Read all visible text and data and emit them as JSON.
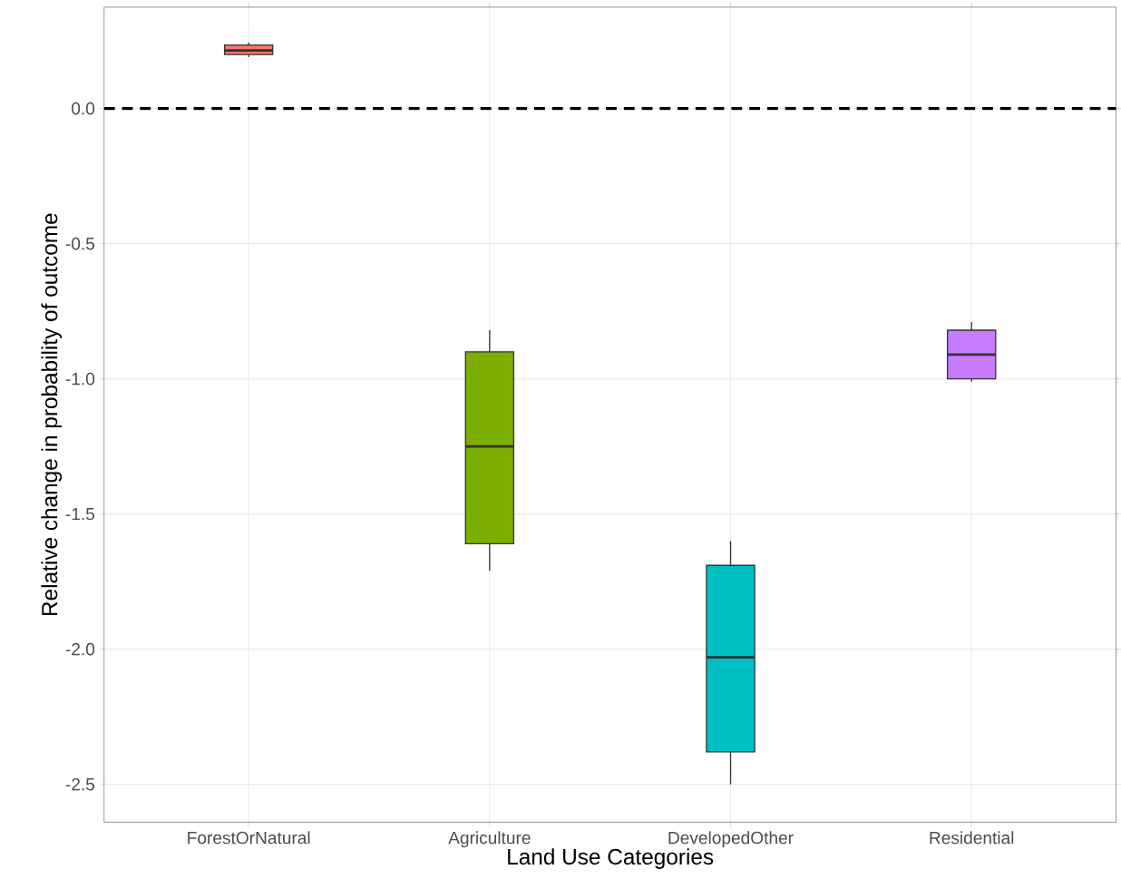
{
  "chart_data": {
    "type": "box",
    "xlabel": "Land Use Categories",
    "ylabel": "Relative change in probability of outcome",
    "categories": [
      "ForestOrNatural",
      "Agriculture",
      "DevelopedOther",
      "Residential"
    ],
    "boxes": [
      {
        "low": 0.19,
        "q1": 0.2,
        "median": 0.215,
        "q3": 0.235,
        "high": 0.245
      },
      {
        "low": -1.71,
        "q1": -1.61,
        "median": -1.25,
        "q3": -0.9,
        "high": -0.82
      },
      {
        "low": -2.5,
        "q1": -2.38,
        "median": -2.03,
        "q3": -1.69,
        "high": -1.6
      },
      {
        "low": -1.01,
        "q1": -1.0,
        "median": -0.91,
        "q3": -0.82,
        "high": -0.79
      }
    ],
    "colors": [
      "#f8766d",
      "#7cae00",
      "#00bfc4",
      "#c77cff"
    ],
    "ylim": [
      -2.64,
      0.375
    ],
    "yticks": [
      {
        "value": -2.5,
        "label": "-2.5"
      },
      {
        "value": -2.0,
        "label": "-2.0"
      },
      {
        "value": -1.5,
        "label": "-1.5"
      },
      {
        "value": -1.0,
        "label": "-1.0"
      },
      {
        "value": -0.5,
        "label": "-0.5"
      },
      {
        "value": 0.0,
        "label": "0.0"
      }
    ],
    "grid": true,
    "ref_lines": [
      {
        "axis": "y",
        "value": 0.0,
        "color": "#000000",
        "line_style": "dashed"
      }
    ]
  }
}
